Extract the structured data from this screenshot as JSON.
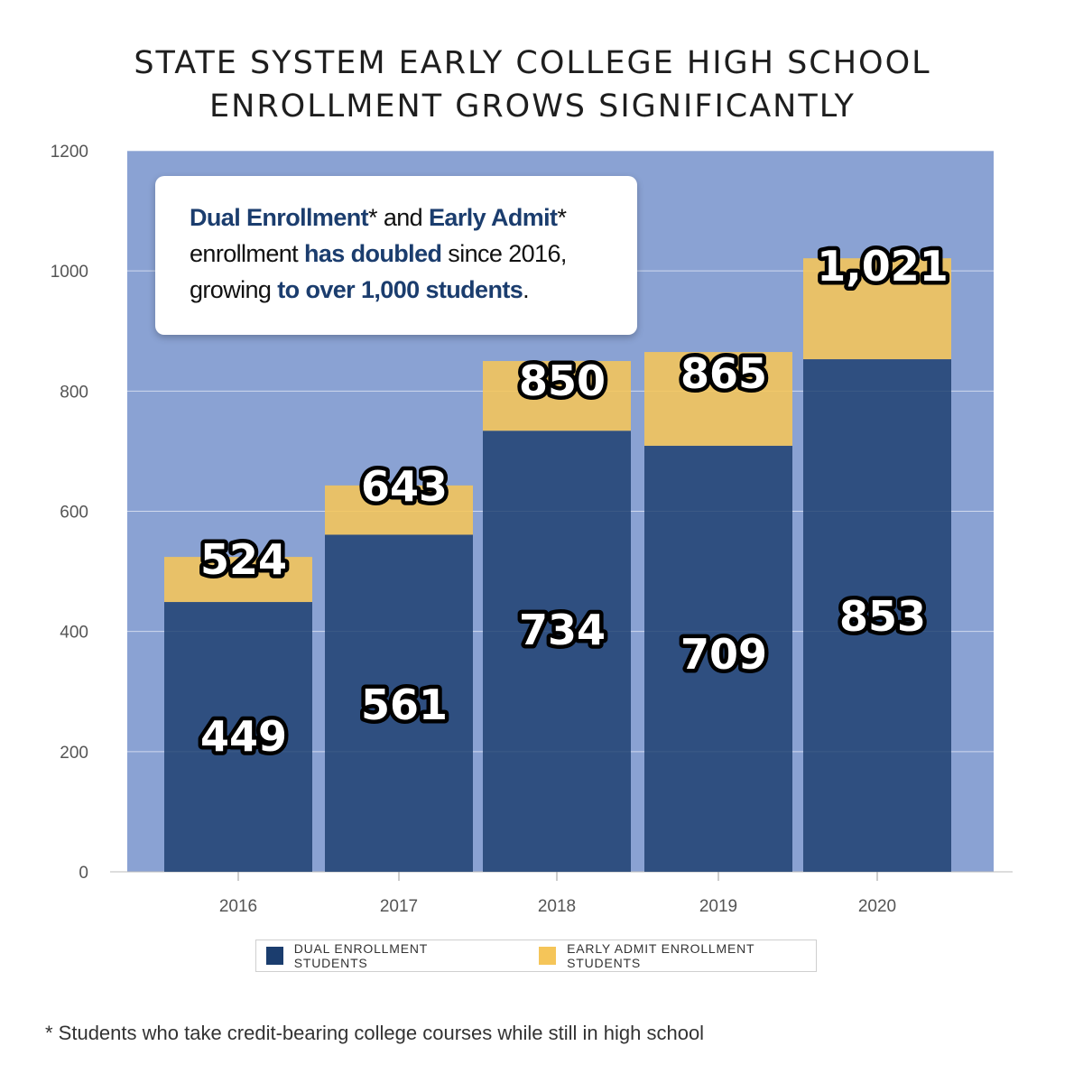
{
  "chart_data": {
    "type": "bar",
    "stacked": true,
    "title_lines": [
      "STATE SYSTEM EARLY COLLEGE HIGH SCHOOL",
      "ENROLLMENT GROWS SIGNIFICANTLY"
    ],
    "categories": [
      "2016",
      "2017",
      "2018",
      "2019",
      "2020"
    ],
    "series": [
      {
        "name": "DUAL ENROLLMENT STUDENTS",
        "values": [
          449,
          561,
          734,
          709,
          853
        ],
        "labels": [
          "449",
          "561",
          "734",
          "709",
          "853"
        ],
        "color": "#1b3d6e"
      },
      {
        "name": "EARLY ADMIT ENROLLMENT STUDENTS",
        "values": [
          75,
          82,
          116,
          156,
          168
        ],
        "color": "#f5c559"
      }
    ],
    "totals": [
      524,
      643,
      850,
      865,
      1021
    ],
    "total_labels": [
      "524",
      "643",
      "850",
      "865",
      "1,021"
    ],
    "ylim": [
      0,
      1200
    ],
    "yticks": [
      0,
      200,
      400,
      600,
      800,
      1000,
      1200
    ],
    "grid": true,
    "legend_position": "bottom",
    "plot_background": "#8aa2d3"
  },
  "callout": {
    "l1_a": "Dual Enrollment",
    "l1_b": "* and ",
    "l1_c": "Early Admit",
    "l1_d": "*",
    "l2_a": "enrollment ",
    "l2_b": "has doubled",
    "l2_c": " since 2016,",
    "l3_a": "growing ",
    "l3_b": "to over 1,000 students",
    "l3_c": "."
  },
  "footnote": "* Students who take credit-bearing college courses while still in high school"
}
